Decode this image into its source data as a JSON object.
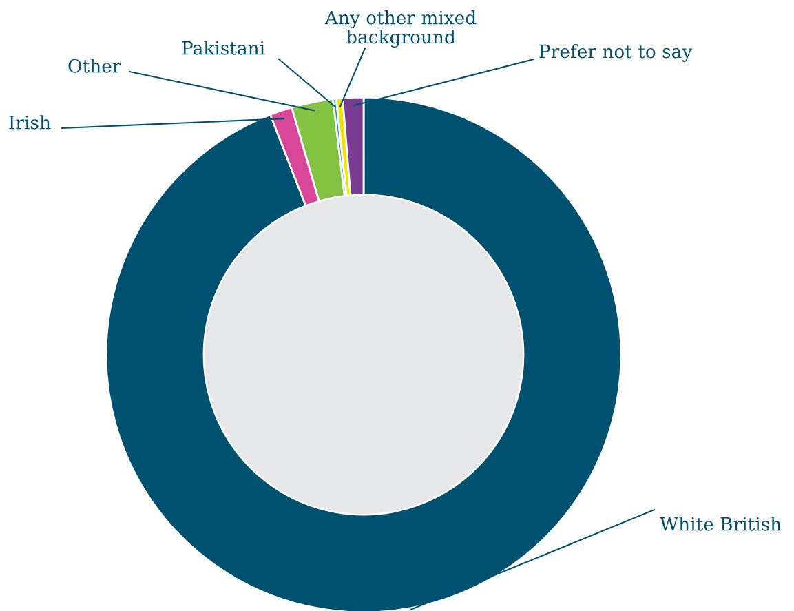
{
  "chart_data": {
    "type": "donut",
    "categories": [
      "White British",
      "Irish",
      "Other",
      "Pakistani",
      "Any other mixed\nbackground",
      "Prefer not to say"
    ],
    "values": [
      94.1,
      1.4,
      2.6,
      0.2,
      0.4,
      1.3
    ],
    "colors": [
      "#00506f",
      "#d9479a",
      "#84c241",
      "#1a9bb0",
      "#f2e300",
      "#7a3b93"
    ],
    "legend": false
  }
}
